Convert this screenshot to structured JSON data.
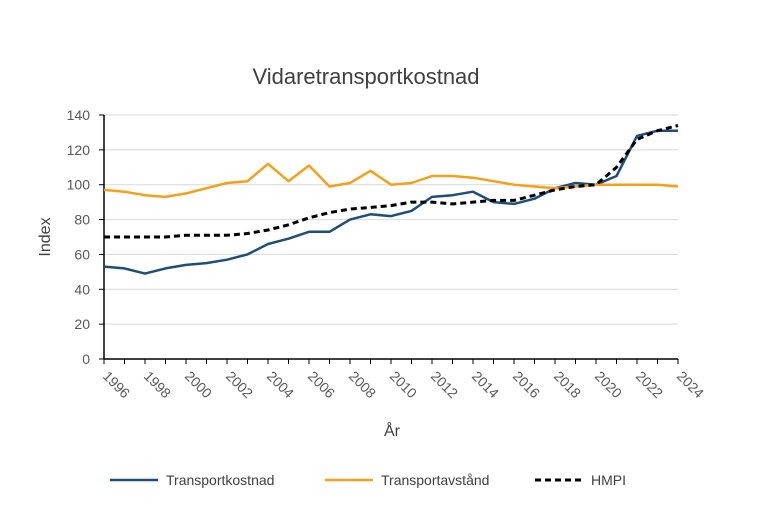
{
  "chart_data": {
    "type": "line",
    "title": "Vidaretransportkostnad",
    "xlabel": "År",
    "ylabel": "Index",
    "ylim": [
      0,
      140
    ],
    "yticks": [
      0,
      20,
      40,
      60,
      80,
      100,
      120,
      140
    ],
    "xlim": [
      1996,
      2024
    ],
    "xticks": [
      1996,
      1998,
      2000,
      2002,
      2004,
      2006,
      2008,
      2010,
      2012,
      2014,
      2016,
      2018,
      2020,
      2022,
      2024
    ],
    "grid": true,
    "legend_position": "bottom",
    "x": [
      1996,
      1997,
      1998,
      1999,
      2000,
      2001,
      2002,
      2003,
      2004,
      2005,
      2006,
      2007,
      2008,
      2009,
      2010,
      2011,
      2012,
      2013,
      2014,
      2015,
      2016,
      2017,
      2018,
      2019,
      2020,
      2021,
      2022,
      2023,
      2024
    ],
    "series": [
      {
        "name": "Transportkostnad",
        "color": "#1f4e79",
        "dash": "solid",
        "values": [
          53,
          52,
          49,
          52,
          54,
          55,
          57,
          60,
          66,
          69,
          73,
          73,
          80,
          83,
          82,
          85,
          93,
          94,
          96,
          90,
          89,
          92,
          98,
          101,
          100,
          105,
          128,
          131,
          131
        ]
      },
      {
        "name": "Transportavstånd",
        "color": "#f5a01a",
        "dash": "solid",
        "values": [
          97,
          96,
          94,
          93,
          95,
          98,
          101,
          102,
          112,
          102,
          111,
          99,
          101,
          108,
          100,
          101,
          105,
          105,
          104,
          102,
          100,
          99,
          98,
          99,
          100,
          100,
          100,
          100,
          99
        ]
      },
      {
        "name": "HMPI",
        "color": "#000000",
        "dash": "dashed",
        "values": [
          70,
          70,
          70,
          70,
          71,
          71,
          71,
          72,
          74,
          77,
          81,
          84,
          86,
          87,
          88,
          90,
          90,
          89,
          90,
          91,
          91,
          94,
          97,
          99,
          100,
          110,
          126,
          131,
          134
        ]
      }
    ]
  }
}
